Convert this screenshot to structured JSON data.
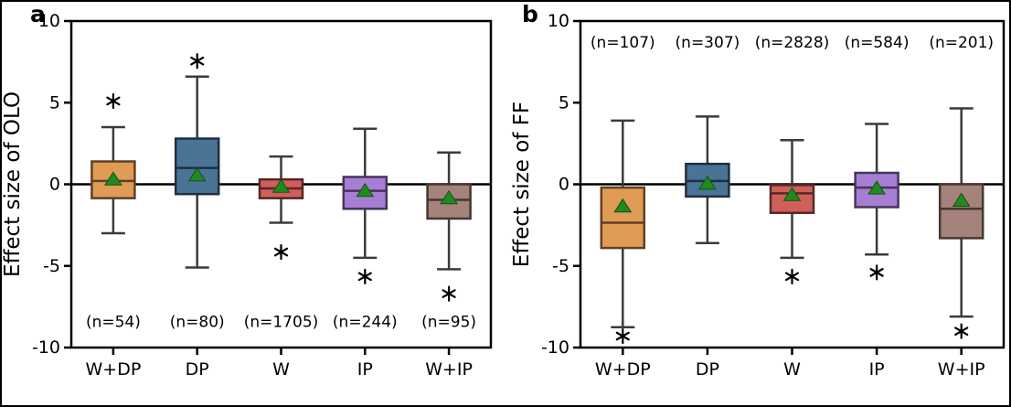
{
  "figure": {
    "background": "#ffffff",
    "border_color": "#000000",
    "text_color": "#000000",
    "axis_color": "#000000",
    "whisker_color": "#3b3b3b",
    "mean_marker": "green-triangle",
    "mean_marker_color": "#1f8b1f",
    "flier_symbol": "*",
    "flier_color": "#000000"
  },
  "chart_data": [
    {
      "type": "boxplot",
      "panel_label": "a",
      "ylabel": "Effect size of OLO",
      "ylim": [
        -10,
        10
      ],
      "yticks": [
        10,
        5,
        0,
        -5,
        -10
      ],
      "zero_line_y": 0,
      "grid": false,
      "categories": [
        "W+DP",
        "DP",
        "W",
        "IP",
        "W+IP"
      ],
      "box_colors": [
        "#e09b55",
        "#4a7396",
        "#d05f5b",
        "#a67fd4",
        "#a5827a"
      ],
      "sample_sizes": [
        54,
        80,
        1705,
        244,
        95
      ],
      "sample_labels": [
        "(n=54)",
        "(n=80)",
        "(n=1705)",
        "(n=244)",
        "(n=95)"
      ],
      "sample_label_y": -8.4,
      "boxes": [
        {
          "category": "W+DP",
          "whislo": -3.0,
          "q1": -0.85,
          "med": 0.2,
          "q3": 1.4,
          "whishi": 3.5,
          "mean": 0.35,
          "fliers": [
            5.1
          ]
        },
        {
          "category": "DP",
          "whislo": -5.1,
          "q1": -0.6,
          "med": 1.0,
          "q3": 2.8,
          "whishi": 6.6,
          "mean": 0.6,
          "fliers": [
            7.55
          ]
        },
        {
          "category": "W",
          "whislo": -2.35,
          "q1": -0.85,
          "med": -0.25,
          "q3": 0.3,
          "whishi": 1.7,
          "mean": -0.1,
          "fliers": [
            -4.15
          ]
        },
        {
          "category": "IP",
          "whislo": -4.5,
          "q1": -1.5,
          "med": -0.4,
          "q3": 0.45,
          "whishi": 3.4,
          "mean": -0.35,
          "fliers": [
            -5.65
          ]
        },
        {
          "category": "W+IP",
          "whislo": -5.2,
          "q1": -2.1,
          "med": -0.95,
          "q3": 0.0,
          "whishi": 1.95,
          "mean": -0.8,
          "fliers": [
            -6.7
          ]
        }
      ]
    },
    {
      "type": "boxplot",
      "panel_label": "b",
      "ylabel": "Effect size of FF",
      "ylim": [
        -10,
        10
      ],
      "yticks": [
        10,
        5,
        0,
        -5,
        -10
      ],
      "zero_line_y": 0,
      "grid": false,
      "categories": [
        "W+DP",
        "DP",
        "W",
        "IP",
        "W+IP"
      ],
      "box_colors": [
        "#e09b55",
        "#4a7396",
        "#d05f5b",
        "#a67fd4",
        "#a5827a"
      ],
      "sample_sizes": [
        107,
        307,
        2828,
        584,
        201
      ],
      "sample_labels": [
        "(n=107)",
        "(n=307)",
        "(n=2828)",
        "(n=584)",
        "(n=201)"
      ],
      "sample_label_y": 8.7,
      "boxes": [
        {
          "category": "W+DP",
          "whislo": -8.75,
          "q1": -3.9,
          "med": -2.35,
          "q3": -0.2,
          "whishi": 3.9,
          "mean": -1.3,
          "fliers": [
            -9.3
          ]
        },
        {
          "category": "DP",
          "whislo": -3.6,
          "q1": -0.75,
          "med": 0.2,
          "q3": 1.25,
          "whishi": 4.15,
          "mean": 0.1,
          "fliers": []
        },
        {
          "category": "W",
          "whislo": -4.5,
          "q1": -1.75,
          "med": -0.55,
          "q3": -0.05,
          "whishi": 2.7,
          "mean": -0.6,
          "fliers": [
            -5.65
          ]
        },
        {
          "category": "IP",
          "whislo": -4.3,
          "q1": -1.4,
          "med": -0.2,
          "q3": 0.7,
          "whishi": 3.7,
          "mean": -0.2,
          "fliers": [
            -5.4
          ]
        },
        {
          "category": "W+IP",
          "whislo": -8.1,
          "q1": -3.3,
          "med": -1.5,
          "q3": 0.0,
          "whishi": 4.65,
          "mean": -0.95,
          "fliers": [
            -9.0
          ]
        }
      ]
    }
  ]
}
